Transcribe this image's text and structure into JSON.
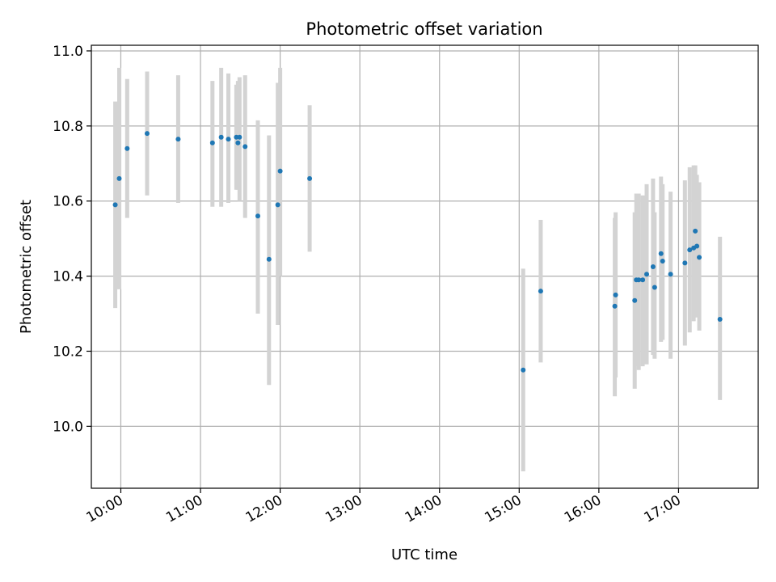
{
  "chart_data": {
    "type": "scatter",
    "title": "Photometric offset variation",
    "xlabel": "UTC time",
    "ylabel": "Photometric offset",
    "x_unit": "hours UTC",
    "xlim": [
      9.63,
      18.0
    ],
    "ylim": [
      9.835,
      11.015
    ],
    "x_ticks": [
      {
        "value": 10,
        "label": "10:00"
      },
      {
        "value": 11,
        "label": "11:00"
      },
      {
        "value": 12,
        "label": "12:00"
      },
      {
        "value": 13,
        "label": "13:00"
      },
      {
        "value": 14,
        "label": "14:00"
      },
      {
        "value": 15,
        "label": "15:00"
      },
      {
        "value": 16,
        "label": "16:00"
      },
      {
        "value": 17,
        "label": "17:00"
      }
    ],
    "y_ticks": [
      {
        "value": 10.0,
        "label": "10.0"
      },
      {
        "value": 10.2,
        "label": "10.2"
      },
      {
        "value": 10.4,
        "label": "10.4"
      },
      {
        "value": 10.6,
        "label": "10.6"
      },
      {
        "value": 10.8,
        "label": "10.8"
      },
      {
        "value": 11.0,
        "label": "11.0"
      }
    ],
    "grid": true,
    "point_color": "#1f77b4",
    "errorbar_color": "#d3d3d3",
    "points": [
      {
        "x": 9.93,
        "y": 10.59,
        "lo": 10.315,
        "hi": 10.865
      },
      {
        "x": 9.98,
        "y": 10.66,
        "lo": 10.365,
        "hi": 10.955
      },
      {
        "x": 10.08,
        "y": 10.74,
        "lo": 10.555,
        "hi": 10.925
      },
      {
        "x": 10.33,
        "y": 10.78,
        "lo": 10.615,
        "hi": 10.945
      },
      {
        "x": 10.72,
        "y": 10.765,
        "lo": 10.595,
        "hi": 10.935
      },
      {
        "x": 11.15,
        "y": 10.755,
        "lo": 10.585,
        "hi": 10.92
      },
      {
        "x": 11.26,
        "y": 10.77,
        "lo": 10.585,
        "hi": 10.955
      },
      {
        "x": 11.35,
        "y": 10.765,
        "lo": 10.595,
        "hi": 10.94
      },
      {
        "x": 11.45,
        "y": 10.77,
        "lo": 10.63,
        "hi": 10.91
      },
      {
        "x": 11.47,
        "y": 10.755,
        "lo": 10.63,
        "hi": 10.92
      },
      {
        "x": 11.49,
        "y": 10.77,
        "lo": 10.6,
        "hi": 10.93
      },
      {
        "x": 11.56,
        "y": 10.745,
        "lo": 10.555,
        "hi": 10.935
      },
      {
        "x": 11.72,
        "y": 10.56,
        "lo": 10.3,
        "hi": 10.815
      },
      {
        "x": 11.86,
        "y": 10.445,
        "lo": 10.11,
        "hi": 10.775
      },
      {
        "x": 11.97,
        "y": 10.59,
        "lo": 10.27,
        "hi": 10.915
      },
      {
        "x": 12.0,
        "y": 10.68,
        "lo": 10.4,
        "hi": 10.955
      },
      {
        "x": 12.37,
        "y": 10.66,
        "lo": 10.465,
        "hi": 10.855
      },
      {
        "x": 15.05,
        "y": 10.15,
        "lo": 9.88,
        "hi": 10.42
      },
      {
        "x": 15.27,
        "y": 10.36,
        "lo": 10.17,
        "hi": 10.55
      },
      {
        "x": 16.2,
        "y": 10.32,
        "lo": 10.08,
        "hi": 10.555
      },
      {
        "x": 16.21,
        "y": 10.35,
        "lo": 10.13,
        "hi": 10.57
      },
      {
        "x": 16.45,
        "y": 10.335,
        "lo": 10.1,
        "hi": 10.57
      },
      {
        "x": 16.47,
        "y": 10.39,
        "lo": 10.16,
        "hi": 10.62
      },
      {
        "x": 16.5,
        "y": 10.39,
        "lo": 10.15,
        "hi": 10.62
      },
      {
        "x": 16.55,
        "y": 10.39,
        "lo": 10.16,
        "hi": 10.615
      },
      {
        "x": 16.6,
        "y": 10.405,
        "lo": 10.165,
        "hi": 10.645
      },
      {
        "x": 16.68,
        "y": 10.425,
        "lo": 10.19,
        "hi": 10.66
      },
      {
        "x": 16.7,
        "y": 10.37,
        "lo": 10.18,
        "hi": 10.57
      },
      {
        "x": 16.78,
        "y": 10.46,
        "lo": 10.225,
        "hi": 10.665
      },
      {
        "x": 16.8,
        "y": 10.44,
        "lo": 10.23,
        "hi": 10.645
      },
      {
        "x": 16.9,
        "y": 10.405,
        "lo": 10.18,
        "hi": 10.625
      },
      {
        "x": 17.08,
        "y": 10.435,
        "lo": 10.215,
        "hi": 10.655
      },
      {
        "x": 17.14,
        "y": 10.47,
        "lo": 10.25,
        "hi": 10.69
      },
      {
        "x": 17.19,
        "y": 10.475,
        "lo": 10.28,
        "hi": 10.695
      },
      {
        "x": 17.21,
        "y": 10.52,
        "lo": 10.3,
        "hi": 10.695
      },
      {
        "x": 17.23,
        "y": 10.48,
        "lo": 10.29,
        "hi": 10.67
      },
      {
        "x": 17.26,
        "y": 10.45,
        "lo": 10.255,
        "hi": 10.65
      },
      {
        "x": 17.52,
        "y": 10.285,
        "lo": 10.07,
        "hi": 10.505
      }
    ]
  }
}
